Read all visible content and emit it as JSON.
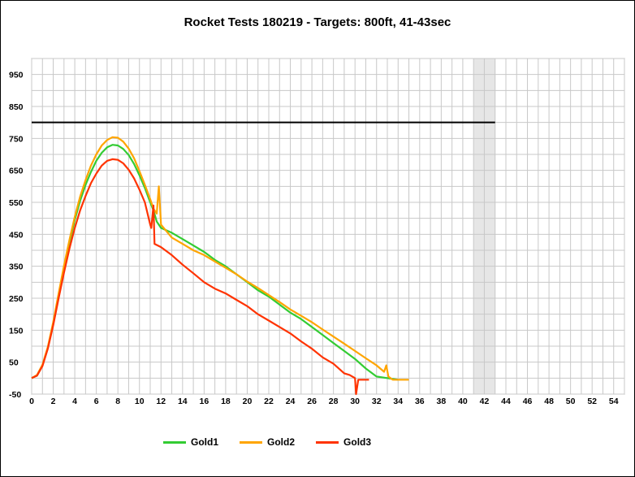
{
  "chart_data": {
    "type": "line",
    "title": "Rocket Tests 180219 - Targets: 800ft, 41-43sec",
    "xlim": [
      0,
      55
    ],
    "ylim": [
      -50,
      1000
    ],
    "x_ticks": [
      0,
      2,
      4,
      6,
      8,
      10,
      12,
      14,
      16,
      18,
      20,
      22,
      24,
      26,
      28,
      30,
      32,
      34,
      36,
      38,
      40,
      42,
      44,
      46,
      48,
      50,
      52,
      54
    ],
    "y_ticks": [
      -50,
      50,
      150,
      250,
      350,
      450,
      550,
      650,
      750,
      850,
      950
    ],
    "grid": true,
    "target_line": {
      "y": 800,
      "x": [
        0,
        43
      ],
      "color": "#000000"
    },
    "target_band": {
      "x": [
        41,
        43
      ],
      "color": "#e6e6e6"
    },
    "legend_position": "bottom",
    "series": [
      {
        "name": "Gold1",
        "color": "#33cc33",
        "x": [
          0,
          0.5,
          1,
          1.5,
          2,
          2.5,
          3,
          3.5,
          4,
          4.5,
          5,
          5.5,
          6,
          6.5,
          7,
          7.5,
          8,
          8.5,
          9,
          9.5,
          10,
          10.5,
          11,
          11.3,
          11.6,
          12,
          13,
          14,
          15,
          16,
          17,
          18,
          19,
          20,
          21,
          22,
          23,
          24,
          25,
          26,
          27,
          28,
          29,
          30,
          31,
          32,
          33,
          34
        ],
        "y": [
          0,
          8,
          40,
          95,
          170,
          260,
          345,
          425,
          495,
          555,
          605,
          645,
          680,
          705,
          722,
          730,
          728,
          717,
          698,
          670,
          635,
          595,
          550,
          525,
          490,
          470,
          455,
          435,
          415,
          395,
          370,
          350,
          325,
          300,
          275,
          255,
          230,
          205,
          185,
          160,
          135,
          110,
          85,
          60,
          30,
          5,
          0,
          -5
        ]
      },
      {
        "name": "Gold2",
        "color": "#ffa500",
        "x": [
          0,
          0.5,
          1,
          1.5,
          2,
          2.5,
          3,
          3.5,
          4,
          4.5,
          5,
          5.5,
          6,
          6.5,
          7,
          7.5,
          8,
          8.5,
          9,
          9.5,
          10,
          10.5,
          11,
          11.3,
          11.6,
          11.8,
          12,
          12.5,
          13,
          14,
          15,
          16,
          17,
          18,
          19,
          20,
          21,
          22,
          23,
          24,
          25,
          26,
          27,
          28,
          29,
          30,
          31,
          32,
          32.7,
          32.9,
          33.1,
          33.5,
          34,
          35
        ],
        "y": [
          0,
          10,
          42,
          98,
          175,
          265,
          352,
          432,
          505,
          568,
          620,
          665,
          700,
          728,
          745,
          754,
          752,
          740,
          718,
          688,
          648,
          605,
          560,
          530,
          515,
          600,
          480,
          460,
          440,
          420,
          400,
          385,
          365,
          345,
          325,
          302,
          282,
          260,
          238,
          215,
          195,
          175,
          152,
          130,
          108,
          85,
          62,
          40,
          20,
          40,
          5,
          -5,
          -5,
          -5
        ]
      },
      {
        "name": "Gold3",
        "color": "#ff3300",
        "x": [
          0,
          0.5,
          1,
          1.5,
          2,
          2.5,
          3,
          3.5,
          4,
          4.5,
          5,
          5.5,
          6,
          6.5,
          7,
          7.5,
          8,
          8.5,
          9,
          9.5,
          10,
          10.5,
          11,
          11.1,
          11.3,
          11.4,
          12,
          13,
          14,
          15,
          16,
          17,
          18,
          19,
          20,
          21,
          22,
          23,
          24,
          25,
          26,
          27,
          28,
          29,
          29.5,
          30,
          30.1,
          30.3,
          31.3
        ],
        "y": [
          0,
          8,
          38,
          92,
          165,
          250,
          330,
          405,
          470,
          525,
          570,
          610,
          640,
          665,
          680,
          685,
          683,
          672,
          652,
          625,
          590,
          550,
          480,
          470,
          540,
          420,
          410,
          385,
          355,
          328,
          300,
          280,
          265,
          245,
          225,
          200,
          180,
          160,
          140,
          115,
          92,
          65,
          45,
          15,
          10,
          0,
          -50,
          -5,
          -5
        ]
      }
    ]
  }
}
